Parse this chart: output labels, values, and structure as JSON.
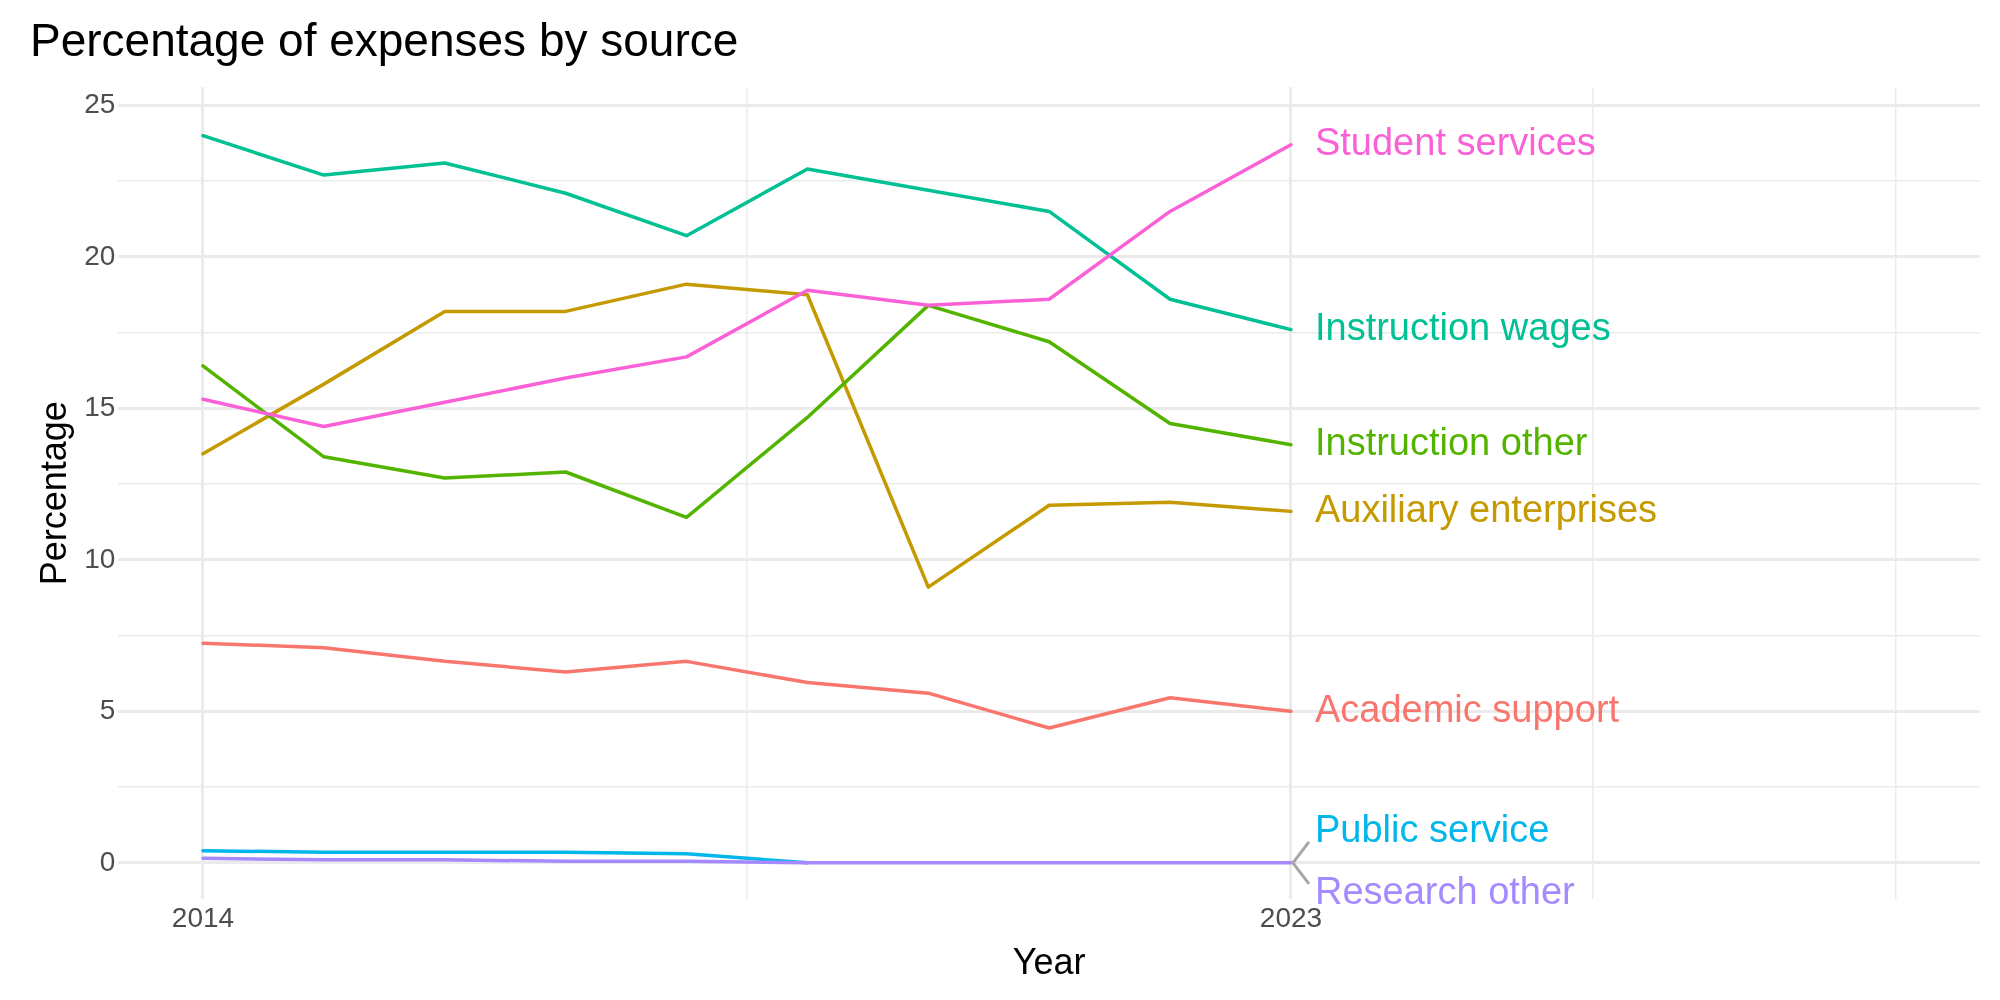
{
  "chart_data": {
    "type": "line",
    "title": "Percentage of expenses by source",
    "xlabel": "Year",
    "ylabel": "Percentage",
    "x": [
      2014,
      2015,
      2016,
      2017,
      2018,
      2019,
      2020,
      2021,
      2022,
      2023
    ],
    "series": [
      {
        "name": "Academic support",
        "color": "#f8766d",
        "values": [
          7.25,
          7.1,
          6.65,
          6.3,
          6.65,
          5.95,
          5.6,
          4.45,
          5.45,
          5.0
        ]
      },
      {
        "name": "Auxiliary enterprises",
        "color": "#c49a00",
        "values": [
          13.5,
          15.8,
          18.2,
          18.2,
          19.1,
          18.75,
          9.1,
          11.8,
          11.9,
          11.6
        ]
      },
      {
        "name": "Instruction other",
        "color": "#53b400",
        "values": [
          16.4,
          13.4,
          12.7,
          12.9,
          11.4,
          14.7,
          18.4,
          17.2,
          14.5,
          13.8
        ]
      },
      {
        "name": "Instruction wages",
        "color": "#00c094",
        "values": [
          24.0,
          22.7,
          23.1,
          22.1,
          20.7,
          22.9,
          22.2,
          21.5,
          18.6,
          17.6
        ]
      },
      {
        "name": "Public service",
        "color": "#00b6eb",
        "values": [
          0.4,
          0.35,
          0.35,
          0.35,
          0.3,
          0,
          null,
          null,
          null,
          null
        ]
      },
      {
        "name": "Research other",
        "color": "#a58aff",
        "values": [
          0.15,
          0.1,
          0.1,
          0.05,
          0.05,
          0,
          0,
          0,
          0,
          0
        ]
      },
      {
        "name": "Student services",
        "color": "#fb61d7",
        "values": [
          15.3,
          14.4,
          15.2,
          16.0,
          16.7,
          18.9,
          18.4,
          18.6,
          21.5,
          23.7
        ]
      }
    ],
    "xlim": [
      2013.3,
      2028.7
    ],
    "xticks": [
      2014,
      {
        "value": 2018.5,
        "label": null
      },
      2023,
      {
        "value": 2025.5,
        "label": null
      },
      {
        "value": 2028,
        "label": null
      }
    ],
    "ylim": [
      -1.2,
      25.6
    ],
    "yticks": [
      0,
      {
        "value": 2.5,
        "label": null
      },
      5,
      {
        "value": 7.5,
        "label": null
      },
      10,
      {
        "value": 12.5,
        "label": null
      },
      15,
      {
        "value": 17.5,
        "label": null
      },
      20,
      {
        "value": 22.5,
        "label": null
      },
      25
    ],
    "grid": true,
    "legend": false,
    "marker": "none",
    "line_style": "solid"
  }
}
